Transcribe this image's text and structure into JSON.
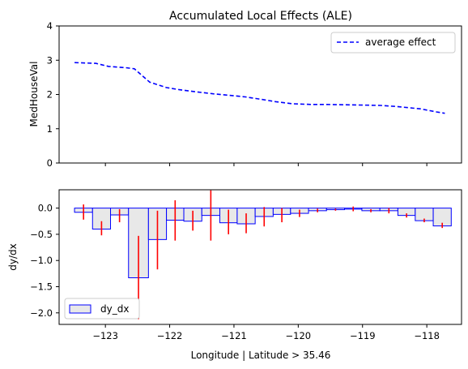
{
  "chart_data": [
    {
      "type": "line",
      "title": "Accumulated Local Effects (ALE)",
      "xlabel": "",
      "ylabel": "MedHouseVal",
      "ylim": [
        0,
        4
      ],
      "yticks": [
        "0",
        "1",
        "2",
        "3",
        "4"
      ],
      "xlim": [
        -123.72,
        -117.46
      ],
      "xticks": [
        -123,
        -122,
        -121,
        -120,
        -119,
        -118
      ],
      "legend": {
        "position": "top-right",
        "label": "average effect"
      },
      "series": [
        {
          "name": "average effect",
          "color": "#0000ff",
          "style": "dashed",
          "x": [
            -123.48,
            -123.15,
            -122.95,
            -122.68,
            -122.55,
            -122.31,
            -122.05,
            -121.85,
            -121.6,
            -121.32,
            -121.1,
            -120.82,
            -120.58,
            -120.35,
            -120.1,
            -119.8,
            -119.55,
            -119.28,
            -118.98,
            -118.72,
            -118.48,
            -118.1,
            -117.85,
            -117.72
          ],
          "y": [
            2.93,
            2.91,
            2.82,
            2.78,
            2.75,
            2.36,
            2.2,
            2.14,
            2.08,
            2.02,
            1.98,
            1.93,
            1.86,
            1.79,
            1.73,
            1.71,
            1.71,
            1.7,
            1.69,
            1.68,
            1.65,
            1.58,
            1.49,
            1.45
          ]
        }
      ]
    },
    {
      "type": "bar",
      "title": "",
      "xlabel": "Longitude | Latitude > 35.46",
      "ylabel": "dy/dx",
      "ylim": [
        -2.22,
        0.35
      ],
      "yticks": [
        "0.0",
        "−0.5",
        "−1.0",
        "−1.5",
        "−2.0"
      ],
      "xlim": [
        -123.72,
        -117.46
      ],
      "xticks": [
        "−123",
        "−122",
        "−121",
        "−120",
        "−119",
        "−118"
      ],
      "legend": {
        "position": "bottom-left",
        "label": "dy_dx"
      },
      "bar_fill": "#e8e8e8",
      "bar_edge": "#0000ff",
      "error_color": "#ff0000",
      "bars": [
        {
          "x0": -123.48,
          "x1": -123.2,
          "value": -0.08,
          "err_low": -0.22,
          "err_high": 0.07
        },
        {
          "x0": -123.2,
          "x1": -122.92,
          "value": -0.4,
          "err_low": -0.52,
          "err_high": -0.25
        },
        {
          "x0": -122.92,
          "x1": -122.64,
          "value": -0.13,
          "err_low": -0.27,
          "err_high": -0.02
        },
        {
          "x0": -122.64,
          "x1": -122.33,
          "value": -1.33,
          "err_low": -2.12,
          "err_high": -0.53
        },
        {
          "x0": -122.33,
          "x1": -122.05,
          "value": -0.6,
          "err_low": -1.17,
          "err_high": -0.05
        },
        {
          "x0": -122.05,
          "x1": -121.78,
          "value": -0.23,
          "err_low": -0.62,
          "err_high": 0.15
        },
        {
          "x0": -121.78,
          "x1": -121.5,
          "value": -0.25,
          "err_low": -0.43,
          "err_high": -0.05
        },
        {
          "x0": -121.5,
          "x1": -121.22,
          "value": -0.14,
          "err_low": -0.62,
          "err_high": 0.34
        },
        {
          "x0": -121.22,
          "x1": -120.95,
          "value": -0.28,
          "err_low": -0.5,
          "err_high": -0.03
        },
        {
          "x0": -120.95,
          "x1": -120.67,
          "value": -0.3,
          "err_low": -0.48,
          "err_high": -0.1
        },
        {
          "x0": -120.67,
          "x1": -120.39,
          "value": -0.16,
          "err_low": -0.35,
          "err_high": 0.02
        },
        {
          "x0": -120.39,
          "x1": -120.12,
          "value": -0.12,
          "err_low": -0.27,
          "err_high": 0.0
        },
        {
          "x0": -120.12,
          "x1": -119.84,
          "value": -0.1,
          "err_low": -0.17,
          "err_high": -0.03
        },
        {
          "x0": -119.84,
          "x1": -119.56,
          "value": -0.05,
          "err_low": -0.08,
          "err_high": -0.01
        },
        {
          "x0": -119.56,
          "x1": -119.28,
          "value": -0.03,
          "err_low": -0.05,
          "err_high": -0.01
        },
        {
          "x0": -119.28,
          "x1": -119.01,
          "value": -0.02,
          "err_low": -0.06,
          "err_high": 0.03
        },
        {
          "x0": -119.01,
          "x1": -118.73,
          "value": -0.05,
          "err_low": -0.08,
          "err_high": -0.02
        },
        {
          "x0": -118.73,
          "x1": -118.45,
          "value": -0.05,
          "err_low": -0.1,
          "err_high": 0.0
        },
        {
          "x0": -118.45,
          "x1": -118.18,
          "value": -0.14,
          "err_low": -0.18,
          "err_high": -0.1
        },
        {
          "x0": -118.18,
          "x1": -117.9,
          "value": -0.24,
          "err_low": -0.27,
          "err_high": -0.2
        },
        {
          "x0": -117.9,
          "x1": -117.62,
          "value": -0.34,
          "err_low": -0.38,
          "err_high": -0.28
        }
      ]
    }
  ]
}
